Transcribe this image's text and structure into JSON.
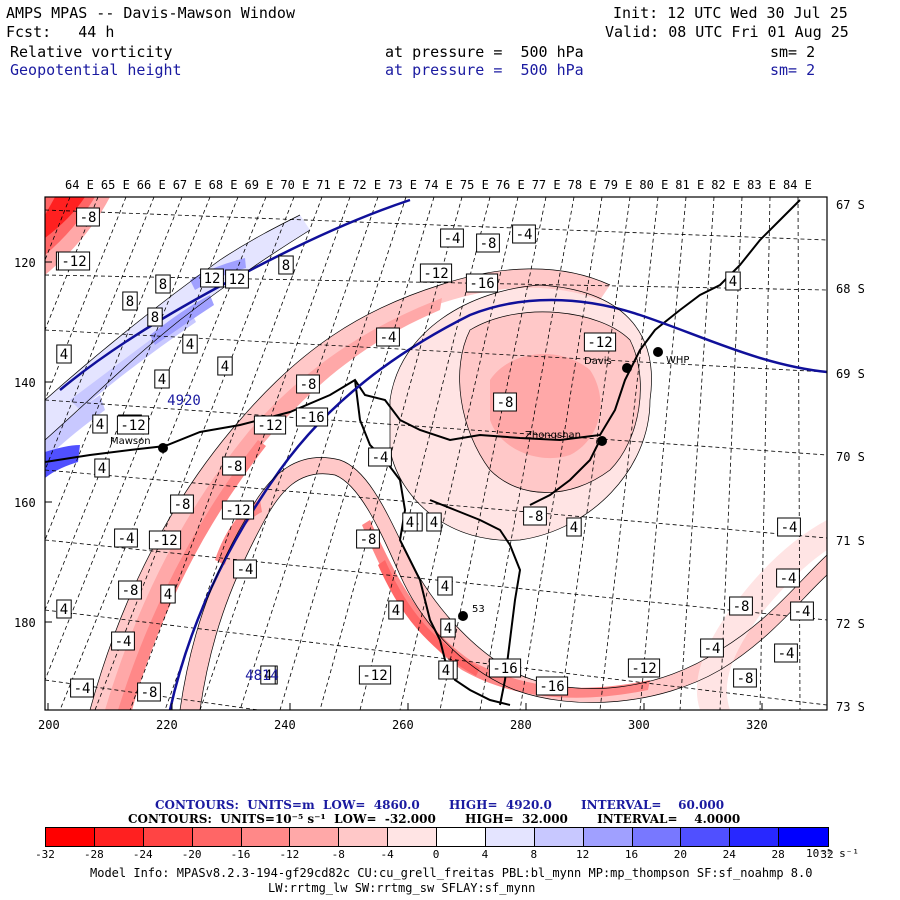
{
  "header": {
    "title": "AMPS MPAS -- Davis-Mawson Window",
    "init": "Init: 12 UTC Wed 30 Jul 25",
    "fcst": "Fcst:   44 h",
    "valid": "Valid: 08 UTC Fri 01 Aug 25",
    "field1": {
      "name": "Relative vorticity",
      "pressure": "at pressure =  500 hPa",
      "sm": "sm= 2"
    },
    "field2": {
      "name": "Geopotential height",
      "pressure": "at pressure =  500 hPa",
      "sm": "sm= 2"
    }
  },
  "top_axis": [
    "64 E",
    "65 E",
    "66 E",
    "67 E",
    "68 E",
    "69 E",
    "70 E",
    "71 E",
    "72 E",
    "73 E",
    "74 E",
    "75 E",
    "76 E",
    "77 E",
    "78 E",
    "79 E",
    "80 E",
    "81 E",
    "82 E",
    "83 E",
    "84 E"
  ],
  "right_axis": [
    "67 S",
    "68 S",
    "69 S",
    "70 S",
    "71 S",
    "72 S",
    "73 S"
  ],
  "left_axis": [
    "120",
    "140",
    "160",
    "180"
  ],
  "bottom_axis": [
    "200",
    "220",
    "240",
    "260",
    "280",
    "300",
    "320"
  ],
  "stations": [
    {
      "name": "Mawson"
    },
    {
      "name": "Davis"
    },
    {
      "name": "WHP"
    },
    {
      "name": "Zhongshan"
    },
    {
      "name": "53"
    }
  ],
  "contour_labels": [
    "-8",
    "-12",
    "-4",
    "-8",
    "-4",
    "-12",
    "-8",
    "8",
    "12",
    "8",
    "12",
    "8",
    "8",
    "4",
    "4",
    "4",
    "4920",
    "4",
    "12",
    "4",
    "-12",
    "-16",
    "-4",
    "-8",
    "-8",
    "-12",
    "-16",
    "-12",
    "-8",
    "4",
    "-8",
    "-4",
    "-12",
    "4",
    "-12",
    "-4",
    "4",
    "-8",
    "-4",
    "4",
    "4",
    "4",
    "-12",
    "-4",
    "-8",
    "4",
    "4",
    "4",
    "4",
    "4",
    "-8",
    "-4",
    "4",
    "-12",
    "4",
    "-16",
    "-16",
    "-12",
    "-4",
    "-8",
    "-8",
    "-4",
    "-4",
    "-4",
    "-4",
    "4",
    "4814",
    "-8",
    "4"
  ],
  "contours_title_1": "CONTOURS:  UNITS=m  LOW=  4860.0       HIGH=  4920.0       INTERVAL=    60.000",
  "contours_title_2": "CONTOURS:  UNITS=10⁻⁵ s⁻¹  LOW=  -32.000       HIGH=  32.000       INTERVAL=    4.0000",
  "colorbar": {
    "ticks": [
      "-32",
      "-28",
      "-24",
      "-20",
      "-16",
      "-12",
      "-8",
      "-4",
      "0",
      "4",
      "8",
      "12",
      "16",
      "20",
      "24",
      "28",
      "32"
    ],
    "unit": "10⁻⁵ s⁻¹",
    "colors": [
      "#ff0000",
      "#ff2020",
      "#ff4444",
      "#ff6666",
      "#ff8888",
      "#ffa8a8",
      "#ffc8c8",
      "#ffe4e4",
      "#ffffff",
      "#ffffff",
      "#e4e4ff",
      "#c8c8ff",
      "#a0a0ff",
      "#7878ff",
      "#5050ff",
      "#2828ff",
      "#0000ff"
    ]
  },
  "footer": {
    "line1": "Model Info: MPASv8.2.3-194-gf29cd82c CU:cu_grell_freitas PBL:bl_mynn MP:mp_thompson SF:sf_noahmp 8.0",
    "line2": "LW:rrtmg_lw SW:rrtmg_sw SFLAY:sf_mynn"
  }
}
